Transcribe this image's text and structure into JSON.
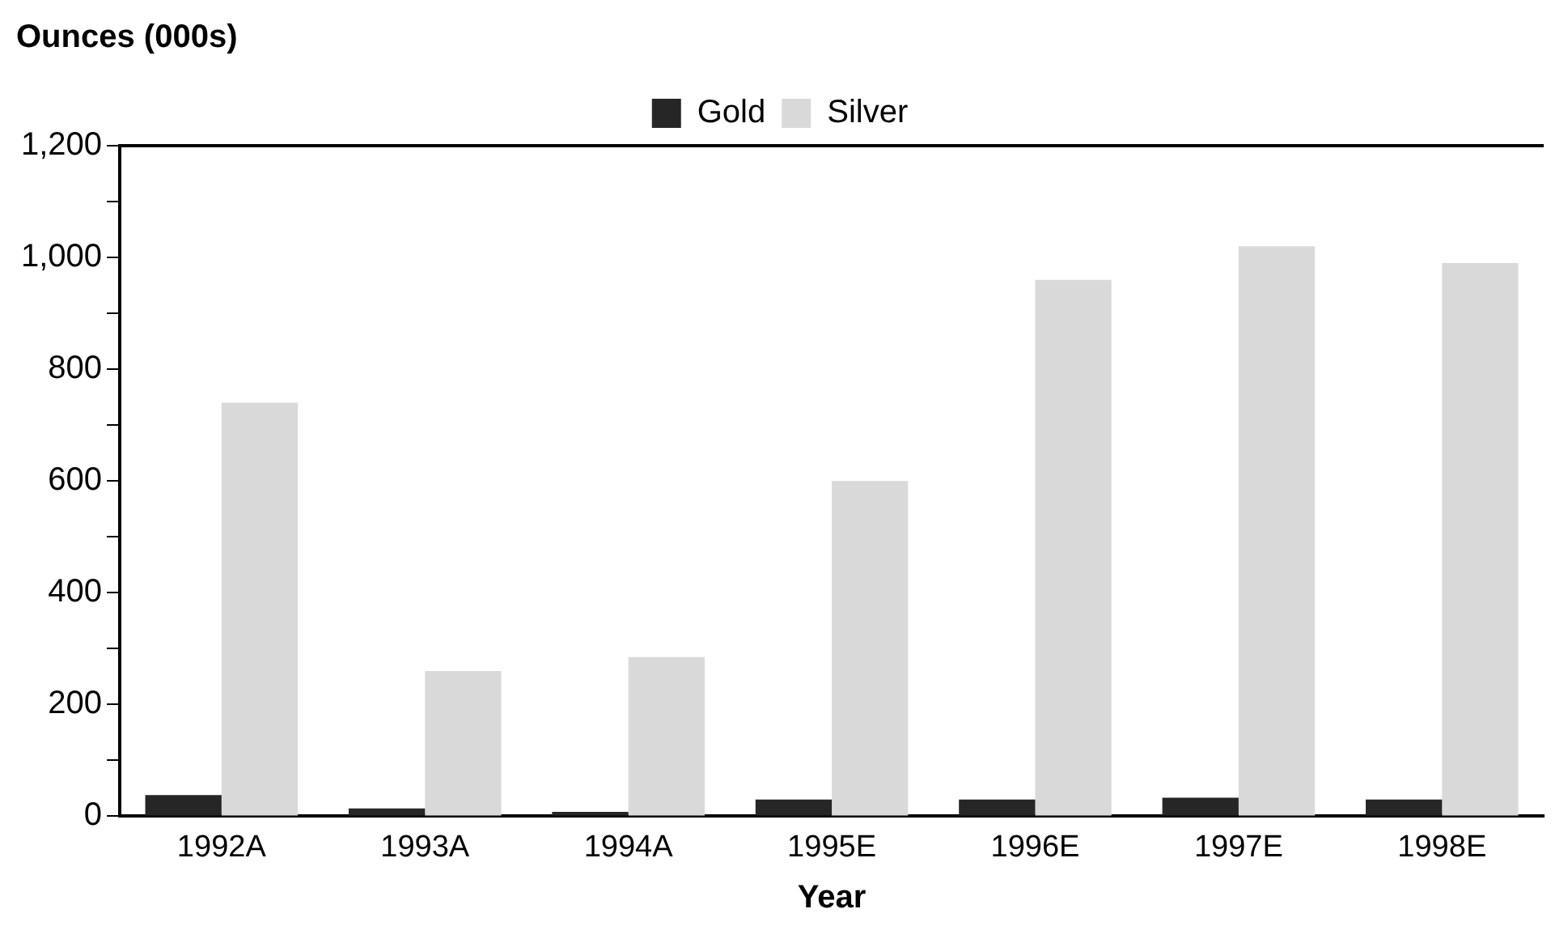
{
  "chart_data": {
    "type": "bar",
    "ylabel": "Ounces (000s)",
    "xlabel": "Year",
    "categories": [
      "1992A",
      "1993A",
      "1994A",
      "1995E",
      "1996E",
      "1997E",
      "1998E"
    ],
    "series": [
      {
        "name": "Gold",
        "color": "#262626",
        "values": [
          38,
          14,
          8,
          30,
          30,
          33,
          30
        ]
      },
      {
        "name": "Silver",
        "color": "#d9d9d9",
        "values": [
          740,
          260,
          285,
          600,
          960,
          1020,
          990
        ]
      }
    ],
    "ylim": [
      0,
      1200
    ],
    "yticks": [
      0,
      {
        "value": 100,
        "label": null
      },
      200,
      {
        "value": 300,
        "label": null
      },
      400,
      {
        "value": 500,
        "label": null
      },
      600,
      {
        "value": 700,
        "label": null
      },
      800,
      {
        "value": 900,
        "label": null
      },
      {
        "value": 1000,
        "label": "1,000"
      },
      {
        "value": 1100,
        "label": null
      },
      {
        "value": 1200,
        "label": "1,200"
      }
    ],
    "grid": false,
    "legend": "top"
  }
}
